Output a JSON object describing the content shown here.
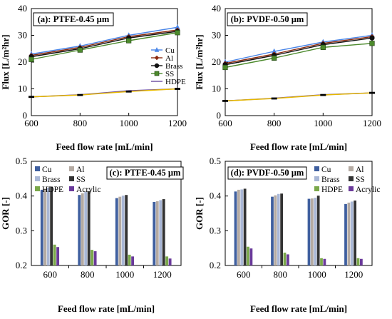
{
  "chart_data": [
    {
      "type": "line",
      "panel_label": "(a): PTFE-0.45 µm",
      "xlabel": "Feed flow rate [mL/min]",
      "ylabel": "Flux [L/m²hr]",
      "x": [
        600,
        800,
        1000,
        1200
      ],
      "xlim": [
        600,
        1200
      ],
      "xticks": [
        "600",
        "800",
        "1000",
        "1200"
      ],
      "ylim": [
        0,
        40
      ],
      "yticks": [
        "0",
        "10",
        "20",
        "30",
        "40"
      ],
      "grid": false,
      "legend_position": "bottom-right",
      "series": [
        {
          "name": "Cu",
          "values": [
            23.0,
            26.0,
            30.0,
            33.0
          ],
          "color": "#4a86e8",
          "marker": "triangle"
        },
        {
          "name": "Al",
          "values": [
            22.5,
            25.5,
            29.5,
            32.0
          ],
          "color": "#8b2a10",
          "marker": "diamond"
        },
        {
          "name": "Brass",
          "values": [
            22.0,
            25.0,
            29.0,
            31.5
          ],
          "color": "#111111",
          "marker": "circle"
        },
        {
          "name": "SS",
          "values": [
            21.0,
            24.5,
            28.0,
            31.0
          ],
          "color": "#4c8a2c",
          "marker": "square"
        },
        {
          "name": "HDPE",
          "values": [
            7.0,
            7.8,
            9.3,
            10.0
          ],
          "color": "#6a4aa0",
          "marker": "none"
        },
        {
          "name": "Acrylic",
          "values": [
            7.0,
            7.7,
            9.0,
            10.0
          ],
          "color": "#e6b800",
          "marker": "dash",
          "legend": false
        }
      ]
    },
    {
      "type": "line",
      "panel_label": "(b): PVDF-0.50 µm",
      "xlabel": "Feed flow rate [mL/min]",
      "ylabel": "Flux [L/m²hr]",
      "x": [
        600,
        800,
        1000,
        1200
      ],
      "xlim": [
        600,
        1200
      ],
      "xticks": [
        "600",
        "800",
        "1000",
        "1200"
      ],
      "ylim": [
        0,
        40
      ],
      "yticks": [
        "0",
        "10",
        "20",
        "30",
        "40"
      ],
      "grid": false,
      "legend_position": "right",
      "series": [
        {
          "name": "Cu",
          "values": [
            20.0,
            24.0,
            27.5,
            30.0
          ],
          "color": "#4a86e8",
          "marker": "triangle"
        },
        {
          "name": "Al",
          "values": [
            19.5,
            23.0,
            27.0,
            29.5
          ],
          "color": "#8b2a10",
          "marker": "diamond"
        },
        {
          "name": "Brass",
          "values": [
            19.0,
            22.5,
            26.5,
            29.0
          ],
          "color": "#111111",
          "marker": "circle"
        },
        {
          "name": "SS",
          "values": [
            18.0,
            21.5,
            25.5,
            27.0
          ],
          "color": "#4c8a2c",
          "marker": "square"
        },
        {
          "name": "HDPE",
          "values": [
            5.5,
            6.5,
            7.8,
            8.5
          ],
          "color": "#6a4aa0",
          "marker": "none"
        },
        {
          "name": "Acrylic",
          "values": [
            5.5,
            6.4,
            7.7,
            8.5
          ],
          "color": "#e6b800",
          "marker": "dash"
        }
      ]
    },
    {
      "type": "bar",
      "panel_label": "(c): PTFE-0.45 µm",
      "xlabel": "Feed flow rate [mL/min]",
      "ylabel": "GOR [-]",
      "categories": [
        "600",
        "800",
        "1000",
        "1200"
      ],
      "ylim": [
        0.2,
        0.5
      ],
      "yticks": [
        "0.2",
        "0.3",
        "0.4",
        "0.5"
      ],
      "grid": false,
      "legend_position": "top-left",
      "series": [
        {
          "name": "Cu",
          "values": [
            0.418,
            0.403,
            0.394,
            0.383
          ],
          "color": "#3f5f9f"
        },
        {
          "name": "Al",
          "values": [
            0.421,
            0.408,
            0.398,
            0.385
          ],
          "color": "#b4aaa2"
        },
        {
          "name": "Brass",
          "values": [
            0.424,
            0.412,
            0.401,
            0.388
          ],
          "color": "#a9b7d6"
        },
        {
          "name": "SS",
          "values": [
            0.427,
            0.414,
            0.403,
            0.391
          ],
          "color": "#333333"
        },
        {
          "name": "HDPE",
          "values": [
            0.26,
            0.245,
            0.231,
            0.226
          ],
          "color": "#7aa84a"
        },
        {
          "name": "Acrylic",
          "values": [
            0.253,
            0.241,
            0.226,
            0.22
          ],
          "color": "#6a3a9a"
        }
      ]
    },
    {
      "type": "bar",
      "panel_label": "(d): PVDF-0.50 µm",
      "xlabel": "Feed flow rate [mL/min]",
      "ylabel": "GOR [-]",
      "categories": [
        "600",
        "800",
        "1000",
        "1200"
      ],
      "ylim": [
        0.2,
        0.5
      ],
      "yticks": [
        "0.2",
        "0.3",
        "0.4",
        "0.5"
      ],
      "grid": false,
      "legend_position": "top-right",
      "series": [
        {
          "name": "Cu",
          "values": [
            0.413,
            0.398,
            0.392,
            0.377
          ],
          "color": "#3f5f9f"
        },
        {
          "name": "Al",
          "values": [
            0.418,
            0.402,
            0.393,
            0.381
          ],
          "color": "#b4aaa2"
        },
        {
          "name": "Brass",
          "values": [
            0.419,
            0.406,
            0.395,
            0.384
          ],
          "color": "#a9b7d6"
        },
        {
          "name": "SS",
          "values": [
            0.421,
            0.407,
            0.401,
            0.387
          ],
          "color": "#333333"
        },
        {
          "name": "HDPE",
          "values": [
            0.254,
            0.237,
            0.221,
            0.221
          ],
          "color": "#7aa84a"
        },
        {
          "name": "Acrylic",
          "values": [
            0.249,
            0.232,
            0.219,
            0.219
          ],
          "color": "#6a3a9a"
        }
      ]
    }
  ]
}
